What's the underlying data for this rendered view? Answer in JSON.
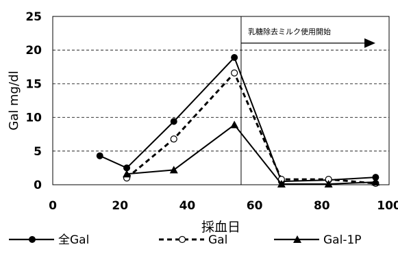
{
  "chart_data": {
    "type": "line",
    "xlabel": "採血日",
    "ylabel": "Gal mg/dl",
    "xlim": [
      0,
      100
    ],
    "ylim": [
      0,
      25
    ],
    "xticks": [
      "0",
      "20",
      "40",
      "60",
      "80",
      "100"
    ],
    "yticks": [
      "0",
      "5",
      "10",
      "15",
      "20",
      "25"
    ],
    "grid": "horizontal dashed",
    "legend_position": "bottom",
    "annotation": {
      "text": "乳糖除去ミルク使用開始",
      "x": 56
    },
    "series": [
      {
        "name": "全Gal",
        "line_style": "solid",
        "marker": "filled-circle",
        "points": [
          [
            14,
            4.3
          ],
          [
            22,
            2.5
          ],
          [
            36,
            9.4
          ],
          [
            54,
            18.9
          ],
          [
            68,
            0.5
          ],
          [
            82,
            0.7
          ],
          [
            96,
            1.1
          ]
        ]
      },
      {
        "name": "Gal",
        "line_style": "dashed",
        "marker": "open-circle",
        "points": [
          [
            22,
            1.0
          ],
          [
            36,
            6.8
          ],
          [
            54,
            16.6
          ],
          [
            68,
            0.8
          ],
          [
            82,
            0.8
          ],
          [
            96,
            0.2
          ]
        ]
      },
      {
        "name": "Gal-1P",
        "line_style": "solid",
        "marker": "filled-triangle",
        "points": [
          [
            22,
            1.6
          ],
          [
            36,
            2.2
          ],
          [
            54,
            8.9
          ],
          [
            68,
            0.1
          ],
          [
            82,
            0.1
          ],
          [
            96,
            0.4
          ]
        ]
      }
    ]
  }
}
